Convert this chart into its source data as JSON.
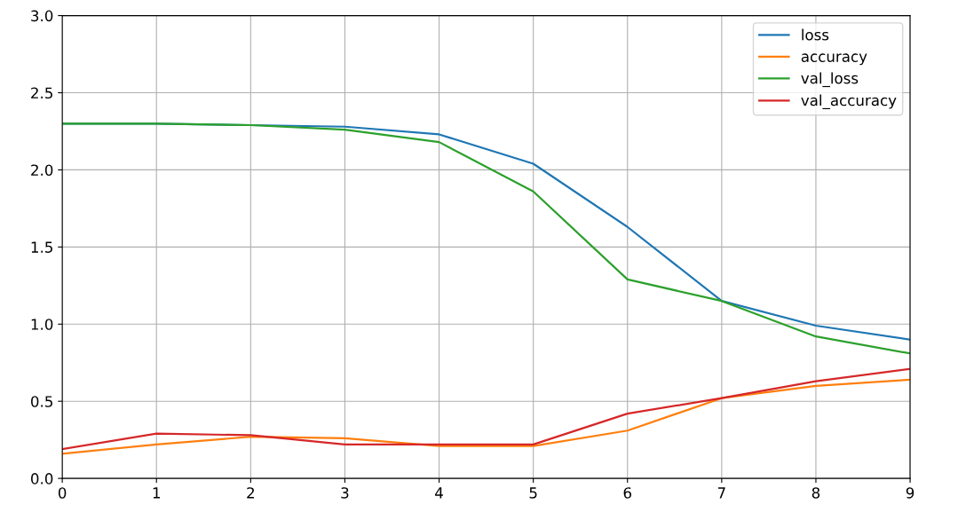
{
  "chart_data": {
    "type": "line",
    "x": [
      0,
      1,
      2,
      3,
      4,
      5,
      6,
      7,
      8,
      9
    ],
    "series": [
      {
        "name": "loss",
        "color": "#1f77b4",
        "values": [
          2.3,
          2.3,
          2.29,
          2.28,
          2.23,
          2.04,
          1.63,
          1.15,
          0.99,
          0.9
        ]
      },
      {
        "name": "accuracy",
        "color": "#ff7f0e",
        "values": [
          0.16,
          0.22,
          0.27,
          0.26,
          0.21,
          0.21,
          0.31,
          0.52,
          0.6,
          0.64
        ]
      },
      {
        "name": "val_loss",
        "color": "#2ca02c",
        "values": [
          2.3,
          2.3,
          2.29,
          2.26,
          2.18,
          1.86,
          1.29,
          1.15,
          0.92,
          0.81
        ]
      },
      {
        "name": "val_accuracy",
        "color": "#d62728",
        "values": [
          0.19,
          0.29,
          0.28,
          0.22,
          0.22,
          0.22,
          0.42,
          0.52,
          0.63,
          0.71
        ]
      }
    ],
    "xlim": [
      0,
      9
    ],
    "xticks": [
      0,
      1,
      2,
      3,
      4,
      5,
      6,
      7,
      8,
      9
    ],
    "ylim": [
      0,
      3.0
    ],
    "yticks": [
      {
        "value": 0,
        "label": "0.0"
      },
      {
        "value": 0.5,
        "label": "0.5"
      },
      {
        "value": 1.0,
        "label": "1.0"
      },
      {
        "value": 1.5,
        "label": "1.5"
      },
      {
        "value": 2.0,
        "label": "2.0"
      },
      {
        "value": 2.5,
        "label": "2.5"
      },
      {
        "value": 3.0,
        "label": "3.0"
      }
    ],
    "grid": true,
    "legend": "top right"
  }
}
